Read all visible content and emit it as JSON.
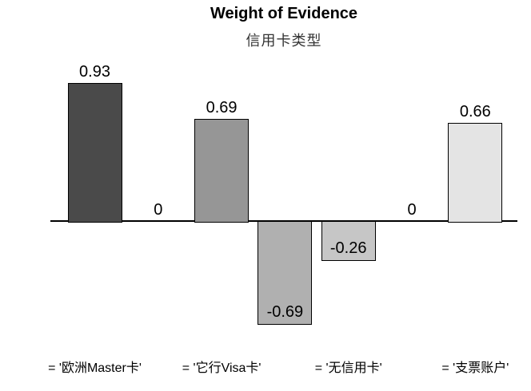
{
  "chart": {
    "title": "Weight of Evidence",
    "subtitle": "信用卡类型"
  },
  "chart_data": {
    "type": "bar",
    "title": "Weight of Evidence",
    "subtitle": "信用卡类型",
    "categories": [
      "欧洲Master卡",
      "",
      "它行Visa卡",
      "",
      "无信用卡",
      "",
      "支票账户"
    ],
    "values": [
      0.93,
      0,
      0.69,
      -0.69,
      -0.26,
      0,
      0.66
    ],
    "value_labels": [
      "0.93",
      "0",
      "0.69",
      "-0.69",
      "-0.26",
      "0",
      "0.66"
    ],
    "bar_colors": [
      "#4a4a4a",
      null,
      "#969696",
      "#b0b0b0",
      "#c6c6c6",
      null,
      "#e4e4e4"
    ],
    "bar_border_color": "#000000",
    "category_labels": [
      {
        "text": "= '欧洲Master卡'",
        "bar_index": 0
      },
      {
        "text": "= '它行Visa卡'",
        "bar_index": 2
      },
      {
        "text": "= '无信用卡'",
        "bar_index": 4
      },
      {
        "text": "= '支票账户'",
        "bar_index": 6
      }
    ],
    "xlabel": "",
    "ylabel": "",
    "ylim": [
      -0.8,
      1.0
    ],
    "baseline": 0,
    "grid": false,
    "legend": false,
    "axis_color": "#000000",
    "background_color": "#ffffff"
  }
}
